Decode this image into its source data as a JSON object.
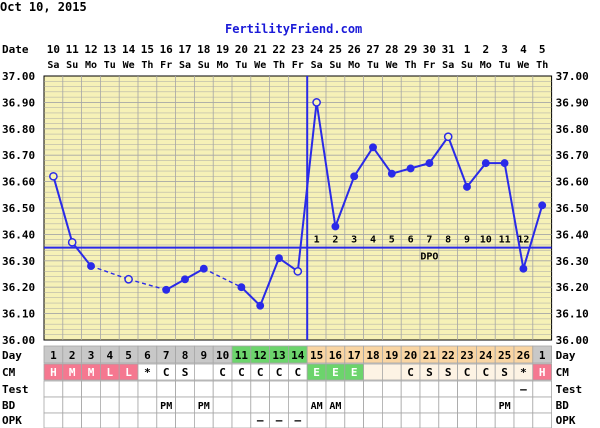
{
  "header": {
    "date": "Oct 10, 2015",
    "site": "FertilityFriend.com"
  },
  "labels": {
    "date_row": "Date",
    "day_row": "Day",
    "cm_row": "CM",
    "test_row": "Test",
    "bd_row": "BD",
    "opk_row": "OPK",
    "dpo": "DPO"
  },
  "colors": {
    "chart_bg": "#f6f1b7",
    "grid": "#a6a6a6",
    "line": "#2a2ae8",
    "site": "#1a1ad8",
    "cell_gray": "#c8c8c8",
    "cell_green": "#6cd46c",
    "cell_peach": "#f9d5a3",
    "cell_pink": "#f57890",
    "cm_text": "#ffffff",
    "row_text": "#000000"
  },
  "chart_data": {
    "type": "line",
    "title": "",
    "xlabel": "Date",
    "ylabel": "",
    "ylim": [
      36.0,
      37.0
    ],
    "y_ticks": [
      "37.00",
      "36.90",
      "36.80",
      "36.70",
      "36.60",
      "36.50",
      "36.40",
      "36.30",
      "36.20",
      "36.10",
      "36.00"
    ],
    "dates": [
      "10",
      "11",
      "12",
      "13",
      "14",
      "15",
      "16",
      "17",
      "18",
      "19",
      "20",
      "21",
      "22",
      "23",
      "24",
      "25",
      "26",
      "27",
      "28",
      "29",
      "30",
      "31",
      "1",
      "2",
      "3",
      "4",
      "5"
    ],
    "weekdays": [
      "Sa",
      "Su",
      "Mo",
      "Tu",
      "We",
      "Th",
      "Fr",
      "Sa",
      "Su",
      "Mo",
      "Tu",
      "We",
      "Th",
      "Fr",
      "Sa",
      "Su",
      "Mo",
      "Tu",
      "We",
      "Th",
      "Fr",
      "Sa",
      "Su",
      "Mo",
      "Tu",
      "We",
      "Th"
    ],
    "cycle_days": [
      "1",
      "2",
      "3",
      "4",
      "5",
      "6",
      "7",
      "8",
      "9",
      "10",
      "11",
      "12",
      "13",
      "14",
      "15",
      "16",
      "17",
      "18",
      "19",
      "20",
      "21",
      "22",
      "23",
      "24",
      "25",
      "26",
      "1"
    ],
    "temps": [
      36.62,
      36.37,
      36.28,
      null,
      36.23,
      null,
      36.19,
      36.23,
      36.27,
      null,
      36.2,
      36.13,
      36.31,
      36.26,
      36.9,
      36.43,
      36.62,
      36.73,
      36.63,
      36.65,
      36.67,
      36.77,
      36.58,
      36.67,
      36.67,
      36.27,
      36.51
    ],
    "open_points": [
      0,
      1,
      4,
      13,
      14,
      21
    ],
    "coverline": 36.35,
    "ovulation_day_index": 13,
    "dpo_labels": [
      "1",
      "2",
      "3",
      "4",
      "5",
      "6",
      "7",
      "8",
      "9",
      "10",
      "11",
      "12"
    ],
    "cm": [
      "H",
      "M",
      "M",
      "L",
      "L",
      "*",
      "C",
      "S",
      "",
      "C",
      "C",
      "C",
      "C",
      "C",
      "E",
      "E",
      "E",
      "",
      "",
      "C",
      "S",
      "S",
      "C",
      "C",
      "S",
      "*",
      "H"
    ],
    "test": [
      "",
      "",
      "",
      "",
      "",
      "",
      "",
      "",
      "",
      "",
      "",
      "",
      "",
      "",
      "",
      "",
      "",
      "",
      "",
      "",
      "",
      "",
      "",
      "",
      "",
      "–",
      ""
    ],
    "bd": [
      "",
      "",
      "",
      "",
      "",
      "",
      "PM",
      "",
      "PM",
      "",
      "",
      "",
      "",
      "",
      "AM",
      "AM",
      "",
      "",
      "",
      "",
      "",
      "",
      "",
      "",
      "PM",
      "",
      ""
    ],
    "opk": [
      "",
      "",
      "",
      "",
      "",
      "",
      "",
      "",
      "",
      "",
      "",
      "–",
      "–",
      "–",
      "",
      "",
      "",
      "",
      "",
      "",
      "",
      "",
      "",
      "",
      "",
      "",
      ""
    ]
  }
}
